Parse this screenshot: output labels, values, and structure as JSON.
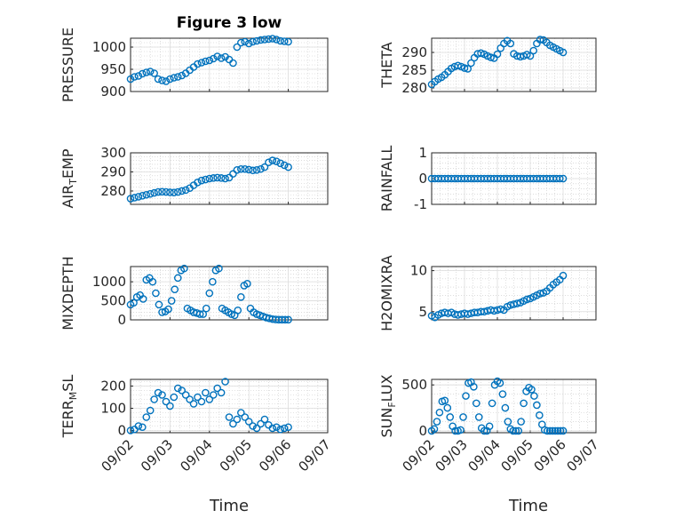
{
  "figure": {
    "title": "Figure 3 low",
    "xlabel": "Time",
    "marker_color": "#0072bd",
    "grid": "major + minor dotted",
    "x_ticks": [
      "09/02",
      "09/03",
      "09/04",
      "09/05",
      "09/06",
      "09/07"
    ]
  },
  "chart_data": [
    {
      "type": "scatter",
      "name": "pressure",
      "ylabel": "PRESSURE",
      "xlim": [
        0,
        5
      ],
      "ylim": [
        900,
        1020
      ],
      "yticks": [
        900,
        950,
        1000
      ],
      "x": [
        0,
        0.1,
        0.2,
        0.3,
        0.4,
        0.5,
        0.6,
        0.7,
        0.8,
        0.9,
        1.0,
        1.1,
        1.2,
        1.3,
        1.4,
        1.5,
        1.6,
        1.7,
        1.8,
        1.9,
        2.0,
        2.1,
        2.2,
        2.3,
        2.4,
        2.5,
        2.6,
        2.7,
        2.8,
        2.9,
        3.0,
        3.1,
        3.2,
        3.3,
        3.4,
        3.5,
        3.6,
        3.7,
        3.8,
        3.9,
        4.0
      ],
      "y": [
        928,
        933,
        935,
        940,
        943,
        945,
        941,
        928,
        925,
        923,
        928,
        931,
        933,
        936,
        941,
        948,
        955,
        962,
        965,
        968,
        970,
        974,
        979,
        975,
        978,
        972,
        964,
        1000,
        1010,
        1012,
        1008,
        1012,
        1014,
        1016,
        1017,
        1018,
        1019,
        1017,
        1014,
        1013,
        1012
      ]
    },
    {
      "type": "scatter",
      "name": "theta",
      "ylabel": "THETA",
      "xlim": [
        0,
        5
      ],
      "ylim": [
        279,
        294
      ],
      "yticks": [
        280,
        285,
        290
      ],
      "x": [
        0,
        0.1,
        0.2,
        0.3,
        0.4,
        0.5,
        0.6,
        0.7,
        0.8,
        0.9,
        1.0,
        1.1,
        1.2,
        1.3,
        1.4,
        1.5,
        1.6,
        1.7,
        1.8,
        1.9,
        2.0,
        2.1,
        2.2,
        2.3,
        2.4,
        2.5,
        2.6,
        2.7,
        2.8,
        2.9,
        3.0,
        3.1,
        3.2,
        3.3,
        3.4,
        3.5,
        3.6,
        3.7,
        3.8,
        3.9,
        4.0
      ],
      "y": [
        281,
        281.8,
        282.5,
        283,
        283.7,
        284.6,
        285.5,
        286,
        286.3,
        286,
        285.6,
        285.4,
        287,
        288.5,
        289.6,
        289.8,
        289.5,
        289,
        288.6,
        288.4,
        289.5,
        291.2,
        292.5,
        293.3,
        292.5,
        289.6,
        289,
        288.8,
        289,
        289.4,
        289,
        290.5,
        292.5,
        293.6,
        293.5,
        292.8,
        292,
        291.5,
        291,
        290.5,
        290
      ]
    },
    {
      "type": "scatter",
      "name": "air_temp",
      "ylabel": "AIR_TEMP",
      "xlim": [
        0,
        5
      ],
      "ylim": [
        273,
        300
      ],
      "yticks": [
        280,
        290,
        300
      ],
      "x": [
        0,
        0.1,
        0.2,
        0.3,
        0.4,
        0.5,
        0.6,
        0.7,
        0.8,
        0.9,
        1.0,
        1.1,
        1.2,
        1.3,
        1.4,
        1.5,
        1.6,
        1.7,
        1.8,
        1.9,
        2.0,
        2.1,
        2.2,
        2.3,
        2.4,
        2.5,
        2.6,
        2.7,
        2.8,
        2.9,
        3.0,
        3.1,
        3.2,
        3.3,
        3.4,
        3.5,
        3.6,
        3.7,
        3.8,
        3.9,
        4.0
      ],
      "y": [
        276,
        276.5,
        277,
        277.5,
        278,
        278.5,
        279,
        279.5,
        279.6,
        279.5,
        279.3,
        279.2,
        279.5,
        280,
        280.5,
        281.5,
        283,
        284.5,
        285.5,
        286,
        286.5,
        286.8,
        287,
        286.8,
        286.5,
        287,
        289,
        291,
        291.5,
        291.5,
        291.2,
        290.8,
        291,
        291.5,
        292.5,
        295,
        296,
        295.5,
        294.5,
        293.5,
        292.5
      ]
    },
    {
      "type": "scatter",
      "name": "rainfall",
      "ylabel": "RAINFALL",
      "xlim": [
        0,
        5
      ],
      "ylim": [
        -1,
        1
      ],
      "yticks": [
        -1,
        0,
        1
      ],
      "x": [
        0,
        0.1,
        0.2,
        0.3,
        0.4,
        0.5,
        0.6,
        0.7,
        0.8,
        0.9,
        1.0,
        1.1,
        1.2,
        1.3,
        1.4,
        1.5,
        1.6,
        1.7,
        1.8,
        1.9,
        2.0,
        2.1,
        2.2,
        2.3,
        2.4,
        2.5,
        2.6,
        2.7,
        2.8,
        2.9,
        3.0,
        3.1,
        3.2,
        3.3,
        3.4,
        3.5,
        3.6,
        3.7,
        3.8,
        3.9,
        4.0
      ],
      "y": [
        0,
        0,
        0,
        0,
        0,
        0,
        0,
        0,
        0,
        0,
        0,
        0,
        0,
        0,
        0,
        0,
        0,
        0,
        0,
        0,
        0,
        0,
        0,
        0,
        0,
        0,
        0,
        0,
        0,
        0,
        0,
        0,
        0,
        0,
        0,
        0,
        0,
        0,
        0,
        0,
        0
      ]
    },
    {
      "type": "scatter",
      "name": "mixdepth",
      "ylabel": "MIXDEPTH",
      "xlim": [
        0,
        5
      ],
      "ylim": [
        0,
        1400
      ],
      "yticks": [
        0,
        500,
        1000
      ],
      "x": [
        0,
        0.08,
        0.16,
        0.24,
        0.32,
        0.4,
        0.48,
        0.56,
        0.64,
        0.72,
        0.8,
        0.88,
        0.96,
        1.04,
        1.12,
        1.2,
        1.28,
        1.36,
        1.44,
        1.52,
        1.6,
        1.68,
        1.76,
        1.84,
        1.92,
        2.0,
        2.08,
        2.16,
        2.24,
        2.32,
        2.4,
        2.48,
        2.56,
        2.64,
        2.72,
        2.8,
        2.88,
        2.96,
        3.04,
        3.12,
        3.2,
        3.28,
        3.36,
        3.44,
        3.52,
        3.6,
        3.68,
        3.76,
        3.84,
        3.92,
        4.0
      ],
      "y": [
        400,
        450,
        600,
        650,
        550,
        1050,
        1100,
        1000,
        700,
        400,
        200,
        220,
        280,
        500,
        800,
        1100,
        1300,
        1350,
        300,
        250,
        200,
        180,
        150,
        150,
        300,
        700,
        1000,
        1300,
        1350,
        300,
        250,
        200,
        150,
        120,
        250,
        600,
        900,
        950,
        300,
        200,
        150,
        120,
        90,
        60,
        40,
        20,
        10,
        5,
        5,
        5,
        5
      ]
    },
    {
      "type": "scatter",
      "name": "h2omixra",
      "ylabel": "H2OMIXRA",
      "xlim": [
        0,
        5
      ],
      "ylim": [
        4,
        10.5
      ],
      "yticks": [
        5,
        10
      ],
      "x": [
        0,
        0.1,
        0.2,
        0.3,
        0.4,
        0.5,
        0.6,
        0.7,
        0.8,
        0.9,
        1.0,
        1.1,
        1.2,
        1.3,
        1.4,
        1.5,
        1.6,
        1.7,
        1.8,
        1.9,
        2.0,
        2.1,
        2.2,
        2.3,
        2.4,
        2.5,
        2.6,
        2.7,
        2.8,
        2.9,
        3.0,
        3.1,
        3.2,
        3.3,
        3.4,
        3.5,
        3.6,
        3.7,
        3.8,
        3.9,
        4.0
      ],
      "y": [
        4.5,
        4.3,
        4.6,
        4.8,
        4.9,
        4.8,
        4.9,
        4.7,
        4.6,
        4.7,
        4.8,
        4.7,
        4.8,
        4.9,
        4.9,
        5.0,
        5.0,
        5.1,
        5.2,
        5.1,
        5.2,
        5.3,
        5.2,
        5.6,
        5.8,
        5.9,
        6.0,
        6.1,
        6.3,
        6.5,
        6.6,
        6.8,
        7.0,
        7.2,
        7.3,
        7.5,
        7.9,
        8.3,
        8.6,
        8.9,
        9.4
      ]
    },
    {
      "type": "scatter",
      "name": "terr_msl",
      "ylabel": "TERR_MSL",
      "xlim": [
        0,
        5
      ],
      "ylim": [
        -10,
        230
      ],
      "yticks": [
        0,
        100,
        200
      ],
      "x": [
        0,
        0.1,
        0.2,
        0.3,
        0.4,
        0.5,
        0.6,
        0.7,
        0.8,
        0.9,
        1.0,
        1.1,
        1.2,
        1.3,
        1.4,
        1.5,
        1.6,
        1.7,
        1.8,
        1.9,
        2.0,
        2.1,
        2.2,
        2.3,
        2.4,
        2.5,
        2.6,
        2.7,
        2.8,
        2.9,
        3.0,
        3.1,
        3.2,
        3.3,
        3.4,
        3.5,
        3.6,
        3.7,
        3.8,
        3.9,
        4.0
      ],
      "y": [
        0,
        5,
        20,
        15,
        60,
        90,
        140,
        170,
        160,
        130,
        110,
        150,
        190,
        180,
        160,
        140,
        120,
        150,
        130,
        170,
        140,
        160,
        190,
        170,
        220,
        60,
        30,
        50,
        80,
        60,
        40,
        20,
        10,
        30,
        50,
        25,
        10,
        15,
        5,
        10,
        15
      ]
    },
    {
      "type": "scatter",
      "name": "sun_flux",
      "ylabel": "SUN_FLUX",
      "xlim": [
        0,
        5
      ],
      "ylim": [
        -20,
        560
      ],
      "yticks": [
        0,
        500
      ],
      "x": [
        0,
        0.08,
        0.16,
        0.24,
        0.32,
        0.4,
        0.48,
        0.56,
        0.64,
        0.72,
        0.8,
        0.88,
        0.96,
        1.04,
        1.12,
        1.2,
        1.28,
        1.36,
        1.44,
        1.52,
        1.6,
        1.68,
        1.76,
        1.84,
        1.92,
        2.0,
        2.08,
        2.16,
        2.24,
        2.32,
        2.4,
        2.48,
        2.56,
        2.64,
        2.72,
        2.8,
        2.88,
        2.96,
        3.04,
        3.12,
        3.2,
        3.28,
        3.36,
        3.44,
        3.52,
        3.6,
        3.68,
        3.76,
        3.84,
        3.92,
        4.0
      ],
      "y": [
        0,
        20,
        100,
        200,
        320,
        330,
        250,
        150,
        50,
        0,
        0,
        10,
        150,
        380,
        520,
        530,
        480,
        300,
        150,
        30,
        0,
        0,
        50,
        300,
        500,
        540,
        520,
        400,
        250,
        100,
        20,
        0,
        0,
        0,
        100,
        300,
        430,
        470,
        450,
        380,
        280,
        170,
        70,
        10,
        0,
        0,
        0,
        0,
        0,
        0,
        0
      ]
    }
  ]
}
